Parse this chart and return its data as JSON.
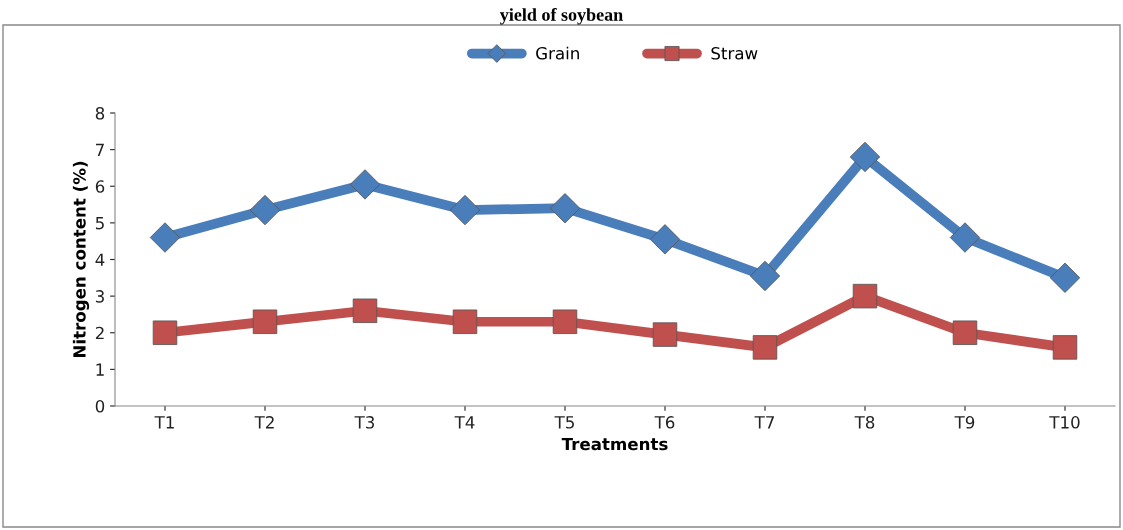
{
  "chart_data": {
    "type": "line",
    "title": "yield of soybean",
    "xlabel": "Treatments",
    "ylabel": "Nitrogen content (%)",
    "categories": [
      "T1",
      "T2",
      "T3",
      "T4",
      "T5",
      "T6",
      "T7",
      "T8",
      "T9",
      "T10"
    ],
    "series": [
      {
        "name": "Grain",
        "color": "#4a7ebb",
        "marker": "diamond",
        "values": [
          4.6,
          5.35,
          6.05,
          5.35,
          5.4,
          4.55,
          3.55,
          6.8,
          4.6,
          3.5
        ]
      },
      {
        "name": "Straw",
        "color": "#c0504d",
        "marker": "square",
        "values": [
          2.0,
          2.3,
          2.6,
          2.3,
          2.3,
          1.95,
          1.6,
          3.0,
          2.0,
          1.6
        ]
      }
    ],
    "ylim": [
      0,
      8
    ],
    "yticks": [
      0,
      1,
      2,
      3,
      4,
      5,
      6,
      7,
      8
    ],
    "grid": false,
    "legend": "top",
    "line_style": "solid"
  }
}
